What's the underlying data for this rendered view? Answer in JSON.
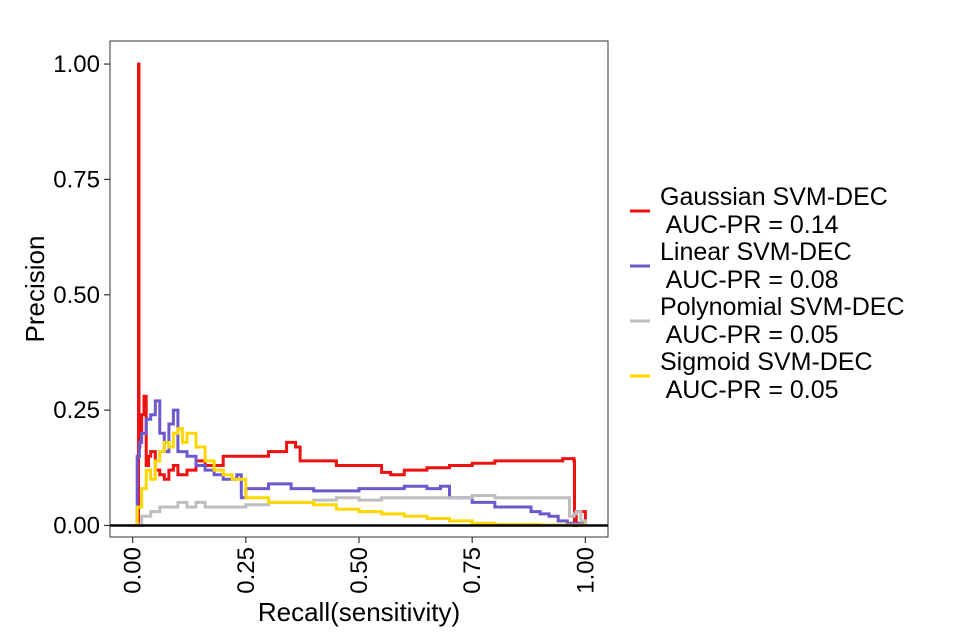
{
  "chart_data": {
    "type": "line",
    "title": "",
    "xlabel": "Recall(sensitivity)",
    "ylabel": "Precision",
    "xlim": [
      -0.05,
      1.05
    ],
    "ylim": [
      -0.025,
      1.05
    ],
    "xticks": [
      0,
      0.25,
      0.5,
      0.75,
      1
    ],
    "xtick_labels": [
      "0.00",
      "0.25",
      "0.50",
      "0.75",
      "1.00"
    ],
    "yticks": [
      0,
      0.25,
      0.5,
      0.75,
      1
    ],
    "ytick_labels": [
      "0.00",
      "0.25",
      "0.50",
      "0.75",
      "1.00"
    ],
    "grid": false,
    "legend_position": "right",
    "reference_line_y": 0,
    "series": [
      {
        "name": "Gaussian SVM-DEC",
        "legend_lines": [
          "Gaussian SVM-DEC",
          " AUC-PR = 0.14"
        ],
        "color": "#ee1111",
        "x": [
          0.0,
          0.012,
          0.013,
          0.014,
          0.016,
          0.02,
          0.025,
          0.03,
          0.035,
          0.04,
          0.05,
          0.06,
          0.07,
          0.08,
          0.09,
          0.1,
          0.12,
          0.14,
          0.16,
          0.2,
          0.25,
          0.3,
          0.34,
          0.36,
          0.37,
          0.4,
          0.45,
          0.5,
          0.55,
          0.57,
          0.6,
          0.65,
          0.7,
          0.75,
          0.8,
          0.85,
          0.9,
          0.95,
          0.975,
          0.976,
          0.98,
          0.99,
          1.0
        ],
        "y": [
          0.0,
          0.01,
          1.0,
          0.17,
          0.2,
          0.24,
          0.28,
          0.13,
          0.15,
          0.16,
          0.12,
          0.11,
          0.1,
          0.12,
          0.13,
          0.11,
          0.12,
          0.14,
          0.13,
          0.15,
          0.15,
          0.16,
          0.18,
          0.17,
          0.14,
          0.14,
          0.13,
          0.13,
          0.115,
          0.11,
          0.12,
          0.125,
          0.13,
          0.135,
          0.14,
          0.14,
          0.14,
          0.145,
          0.14,
          0.0,
          0.03,
          0.03,
          0.0
        ]
      },
      {
        "name": "Linear SVM-DEC",
        "legend_lines": [
          "Linear SVM-DEC",
          " AUC-PR = 0.08"
        ],
        "color": "#6a5acd",
        "x": [
          0.0,
          0.01,
          0.015,
          0.02,
          0.03,
          0.04,
          0.05,
          0.06,
          0.07,
          0.08,
          0.09,
          0.1,
          0.12,
          0.14,
          0.16,
          0.18,
          0.2,
          0.23,
          0.24,
          0.25,
          0.3,
          0.33,
          0.35,
          0.4,
          0.45,
          0.5,
          0.55,
          0.6,
          0.65,
          0.68,
          0.7,
          0.75,
          0.8,
          0.85,
          0.88,
          0.9,
          0.92,
          0.94,
          0.96,
          1.0
        ],
        "y": [
          0.0,
          0.15,
          0.18,
          0.2,
          0.23,
          0.24,
          0.27,
          0.2,
          0.16,
          0.22,
          0.25,
          0.16,
          0.15,
          0.13,
          0.12,
          0.11,
          0.1,
          0.11,
          0.06,
          0.08,
          0.09,
          0.09,
          0.08,
          0.075,
          0.075,
          0.08,
          0.08,
          0.085,
          0.08,
          0.085,
          0.06,
          0.05,
          0.04,
          0.04,
          0.03,
          0.025,
          0.02,
          0.01,
          0.005,
          0.0
        ]
      },
      {
        "name": "Polynomial SVM-DEC",
        "legend_lines": [
          "Polynomial SVM-DEC",
          " AUC-PR = 0.05"
        ],
        "color": "#bebebe",
        "x": [
          0.0,
          0.02,
          0.04,
          0.06,
          0.08,
          0.1,
          0.12,
          0.14,
          0.16,
          0.2,
          0.25,
          0.3,
          0.35,
          0.4,
          0.45,
          0.5,
          0.55,
          0.6,
          0.65,
          0.7,
          0.75,
          0.8,
          0.85,
          0.9,
          0.93,
          0.96,
          0.965,
          0.975,
          0.98,
          0.99,
          1.0
        ],
        "y": [
          0.0,
          0.02,
          0.03,
          0.04,
          0.04,
          0.05,
          0.04,
          0.05,
          0.04,
          0.04,
          0.045,
          0.05,
          0.05,
          0.055,
          0.06,
          0.055,
          0.06,
          0.06,
          0.06,
          0.06,
          0.065,
          0.06,
          0.06,
          0.06,
          0.06,
          0.06,
          0.02,
          0.025,
          0.03,
          0.01,
          0.0
        ]
      },
      {
        "name": "Sigmoid SVM-DEC",
        "legend_lines": [
          "Sigmoid SVM-DEC",
          " AUC-PR = 0.05"
        ],
        "color": "#ffd700",
        "x": [
          0.0,
          0.01,
          0.02,
          0.03,
          0.04,
          0.05,
          0.06,
          0.07,
          0.08,
          0.09,
          0.1,
          0.11,
          0.12,
          0.14,
          0.16,
          0.18,
          0.2,
          0.22,
          0.24,
          0.25,
          0.27,
          0.3,
          0.35,
          0.4,
          0.45,
          0.5,
          0.55,
          0.6,
          0.65,
          0.7,
          0.75,
          0.8,
          0.9,
          1.0
        ],
        "y": [
          0.0,
          0.04,
          0.08,
          0.12,
          0.1,
          0.14,
          0.16,
          0.18,
          0.17,
          0.2,
          0.21,
          0.18,
          0.2,
          0.17,
          0.14,
          0.12,
          0.11,
          0.1,
          0.1,
          0.06,
          0.06,
          0.05,
          0.05,
          0.045,
          0.035,
          0.03,
          0.025,
          0.02,
          0.015,
          0.01,
          0.005,
          0.002,
          0.001,
          0.0
        ]
      }
    ]
  }
}
